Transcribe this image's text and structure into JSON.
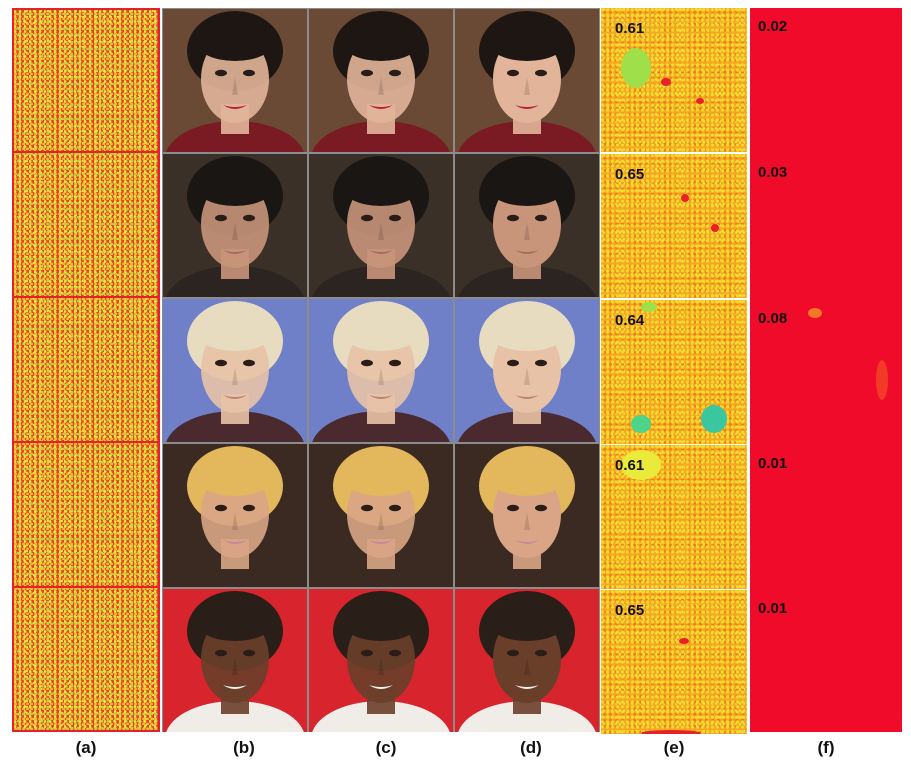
{
  "captions": [
    "(a)",
    "(b)",
    "(c)",
    "(d)",
    "(e)",
    "(f)"
  ],
  "scores_e": [
    "0.61",
    "0.65",
    "0.64",
    "0.61",
    "0.65"
  ],
  "scores_f": [
    "0.02",
    "0.03",
    "0.08",
    "0.01",
    "0.01"
  ],
  "rows": [
    {
      "bg": "#6a4a34",
      "skin": "#e2b59a",
      "hair": "#1e1612",
      "lip": "#b3203a",
      "cloth": "#7a1a22"
    },
    {
      "bg": "#3b3028",
      "skin": "#c9957a",
      "hair": "#1a1614",
      "lip": "#a86a5e",
      "cloth": "#2b2420"
    },
    {
      "bg": "#6f80c8",
      "skin": "#e8c2a6",
      "hair": "#e7dcc0",
      "lip": "#b98375",
      "cloth": "#4a2a2e"
    },
    {
      "bg": "#3a2a22",
      "skin": "#d9a586",
      "hair": "#e3b75c",
      "lip": "#c8889a",
      "cloth": "#3a2a22"
    },
    {
      "bg": "#d8242c",
      "skin": "#6a3f2a",
      "hair": "#2a1e18",
      "lip": "#f4f0ea",
      "cloth": "#f0ece8"
    }
  ]
}
